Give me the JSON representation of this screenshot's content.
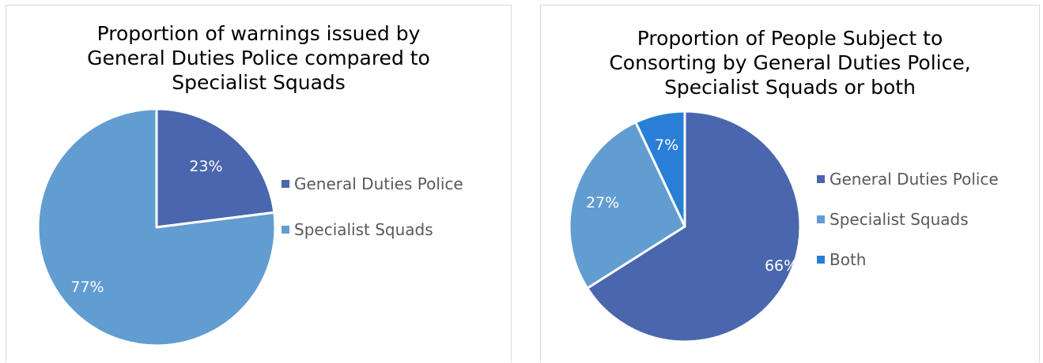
{
  "chart_data": [
    {
      "type": "pie",
      "title_lines": [
        "Proportion of warnings issued by",
        "General Duties Police compared to",
        "Specialist Squads"
      ],
      "categories": [
        "General Duties Police",
        "Specialist Squads"
      ],
      "values": [
        23,
        77
      ],
      "data_labels": [
        "23%",
        "77%"
      ],
      "colors": [
        "#4a66ac",
        "#629dd1"
      ],
      "legend_position": "right"
    },
    {
      "type": "pie",
      "title_lines": [
        "Proportion of People Subject to",
        "Consorting by General Duties Police,",
        "Specialist Squads or both"
      ],
      "categories": [
        "General Duties Police",
        "Specialist Squads",
        "Both"
      ],
      "values": [
        66,
        27,
        7
      ],
      "data_labels": [
        "66%",
        "27%",
        "7%"
      ],
      "colors": [
        "#4a66ac",
        "#629dd1",
        "#297fd5"
      ],
      "legend_position": "right"
    }
  ]
}
